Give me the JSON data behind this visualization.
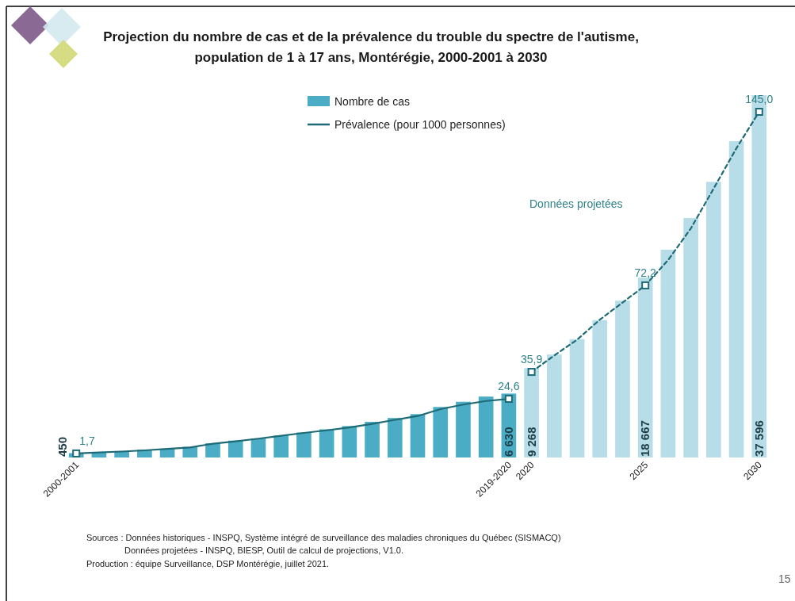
{
  "chart_data": {
    "type": "bar",
    "title": "Projection du nombre de cas et de la prévalence du trouble du spectre de l'autisme,\npopulation de 1 à 17 ans, Montérégie, 2000-2001 à 2030",
    "categories": [
      "2000-2001",
      null,
      null,
      null,
      null,
      null,
      null,
      null,
      null,
      null,
      null,
      null,
      null,
      null,
      null,
      null,
      null,
      null,
      null,
      "2019-2020",
      "2020",
      null,
      null,
      null,
      null,
      "2025",
      null,
      null,
      null,
      null,
      "2030"
    ],
    "series": [
      {
        "name": "Nombre de cas",
        "color": "#4bacc6",
        "colors": [
          "#4bacc6",
          "#4bacc6",
          "#4bacc6",
          "#4bacc6",
          "#4bacc6",
          "#4bacc6",
          "#4bacc6",
          "#4bacc6",
          "#4bacc6",
          "#4bacc6",
          "#4bacc6",
          "#4bacc6",
          "#4bacc6",
          "#4bacc6",
          "#4bacc6",
          "#4bacc6",
          "#4bacc6",
          "#4bacc6",
          "#4bacc6",
          "#4bacc6",
          "#b7dde8",
          "#b7dde8",
          "#b7dde8",
          "#b7dde8",
          "#b7dde8",
          "#b7dde8",
          "#b7dde8",
          "#b7dde8",
          "#b7dde8",
          "#b7dde8",
          "#b7dde8"
        ],
        "values": [
          450,
          540,
          670,
          810,
          910,
          1110,
          1480,
          1750,
          1980,
          2280,
          2590,
          2920,
          3260,
          3700,
          4100,
          4500,
          5240,
          5780,
          6320,
          6630,
          9268,
          10680,
          12280,
          14250,
          16270,
          18667,
          21560,
          24840,
          28600,
          32820,
          37596
        ],
        "value_labels": [
          "450",
          null,
          null,
          null,
          null,
          null,
          null,
          null,
          null,
          null,
          null,
          null,
          null,
          null,
          null,
          null,
          null,
          null,
          null,
          "6 630",
          "9 268",
          null,
          null,
          null,
          null,
          "18 667",
          null,
          null,
          null,
          null,
          "37 596"
        ]
      },
      {
        "name": "Prévalence (pour 1000 personnes)",
        "type": "line",
        "axis": "y2",
        "color": "#1f6b75",
        "line_style": "solid",
        "values": [
          1.7,
          2.1,
          2.5,
          3.0,
          3.6,
          4.2,
          5.8,
          6.8,
          7.9,
          9.1,
          10.3,
          11.4,
          12.6,
          14.1,
          15.8,
          17.4,
          20.3,
          22.2,
          23.7,
          24.6,
          null,
          null,
          null,
          null,
          null,
          null,
          null,
          null,
          null,
          null,
          null
        ],
        "value_labels": [
          "1,7",
          null,
          null,
          null,
          null,
          null,
          null,
          null,
          null,
          null,
          null,
          null,
          null,
          null,
          null,
          null,
          null,
          null,
          null,
          "24,6",
          null,
          null,
          null,
          null,
          null,
          null,
          null,
          null,
          null,
          null,
          null
        ]
      },
      {
        "type": "line",
        "axis": "y2",
        "color": "#1f6b75",
        "line_style": "dashed",
        "values": [
          null,
          null,
          null,
          null,
          null,
          null,
          null,
          null,
          null,
          null,
          null,
          null,
          null,
          null,
          null,
          null,
          null,
          null,
          null,
          null,
          35.9,
          42.8,
          49.4,
          57.8,
          65.0,
          72.2,
          82.8,
          96.1,
          112.8,
          129.7,
          145.0
        ],
        "value_labels": [
          null,
          null,
          null,
          null,
          null,
          null,
          null,
          null,
          null,
          null,
          null,
          null,
          null,
          null,
          null,
          null,
          null,
          null,
          null,
          null,
          "35,9",
          null,
          null,
          null,
          null,
          "72,2",
          null,
          null,
          null,
          null,
          "145,0"
        ]
      }
    ],
    "tick_labels": "x",
    "legend": "top",
    "annotations": [
      "Données projetées",
      "Sources : Données historiques - INSPQ, Système intégré de surveillance des maladies chroniques du Québec (SISMACQ)",
      "Données projetées - INSPQ, BIESP, Outil de calcul de projections, V1.0.",
      "Production : équipe Surveillance, DSP Montérégie, juillet 2021.",
      "15"
    ]
  }
}
